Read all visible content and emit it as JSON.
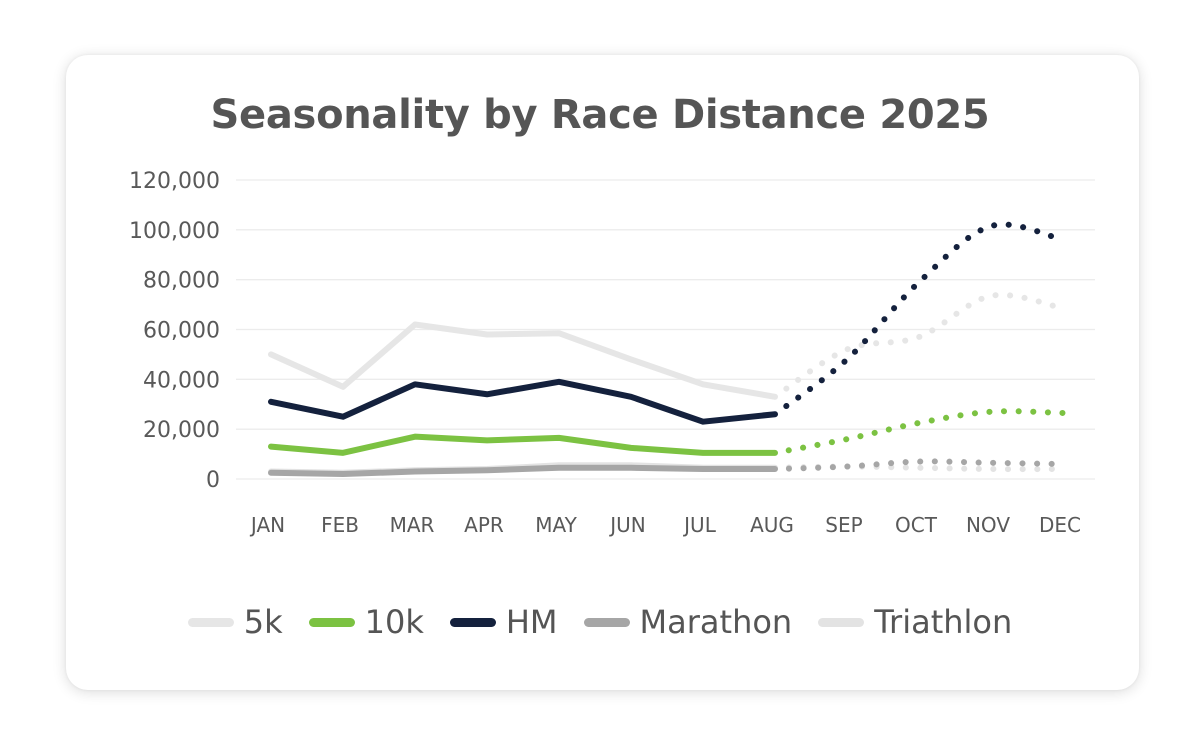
{
  "chart_data": {
    "type": "line",
    "title": "Seasonality by Race Distance 2025",
    "xlabel": "",
    "ylabel": "",
    "categories": [
      "JAN",
      "FEB",
      "MAR",
      "APR",
      "MAY",
      "JUN",
      "JUL",
      "AUG",
      "SEP",
      "OCT",
      "NOV",
      "DEC"
    ],
    "yticks": [
      "0",
      "20,000",
      "40,000",
      "60,000",
      "80,000",
      "100,000",
      "120,000"
    ],
    "ytick_values": [
      0,
      20000,
      40000,
      60000,
      80000,
      100000,
      120000
    ],
    "ylim": [
      0,
      120000
    ],
    "grid": true,
    "legend_position": "bottom",
    "actual_through": "AUG",
    "projection_style": "dotted",
    "series": [
      {
        "name": "5k",
        "color": "#e6e6e6",
        "values": [
          50000,
          37000,
          62000,
          58000,
          58500,
          48000,
          38000,
          33000,
          52000,
          57000,
          73500,
          68500
        ]
      },
      {
        "name": "10k",
        "color": "#7cc242",
        "values": [
          13000,
          10500,
          17000,
          15500,
          16500,
          12500,
          10500,
          10500,
          16000,
          22500,
          27000,
          26500
        ]
      },
      {
        "name": "HM",
        "color": "#14213d",
        "values": [
          31000,
          25000,
          38000,
          34000,
          39000,
          33000,
          23000,
          26000,
          48000,
          79000,
          101500,
          96000
        ]
      },
      {
        "name": "Marathon",
        "color": "#a6a6a6",
        "values": [
          2500,
          2000,
          3000,
          3500,
          4500,
          4500,
          4000,
          4000,
          5000,
          7000,
          6500,
          6000
        ]
      },
      {
        "name": "Triathlon",
        "color": "#e3e3e3",
        "values": [
          3000,
          2500,
          3500,
          4000,
          5500,
          5500,
          4500,
          4500,
          5000,
          4500,
          4000,
          4000
        ]
      }
    ]
  }
}
